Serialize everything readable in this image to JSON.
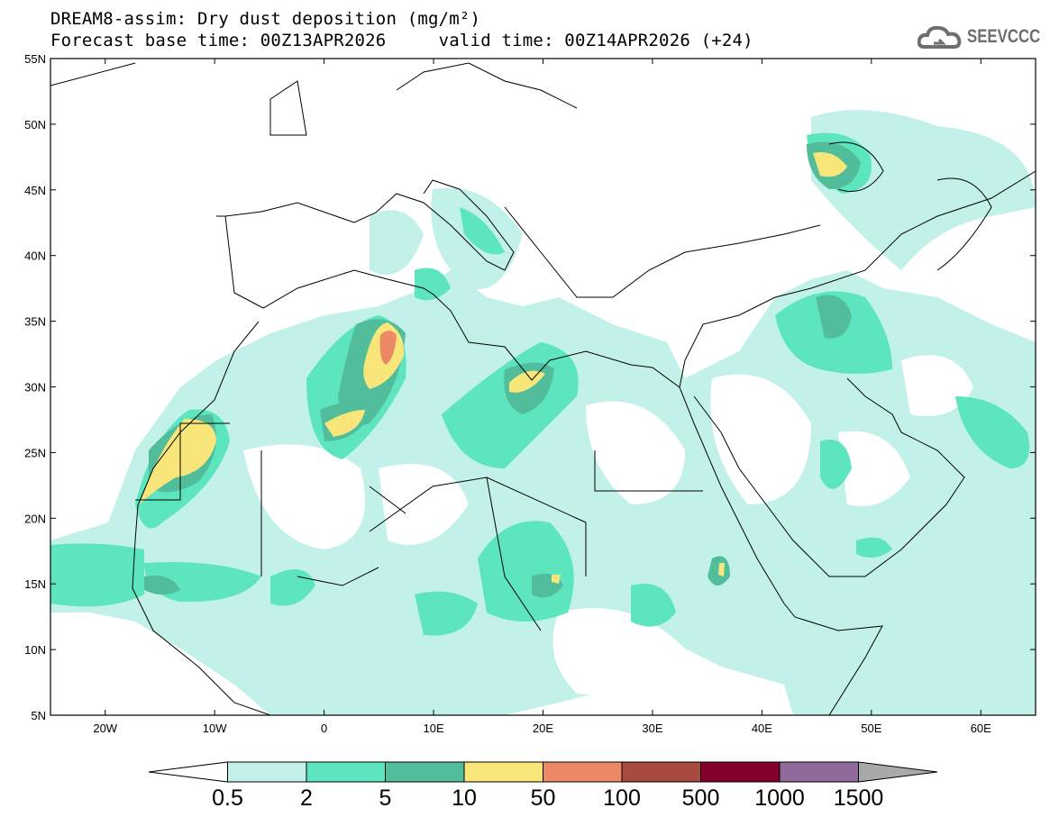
{
  "header": {
    "title": "DREAM8-assim: Dry dust deposition (mg/m²)",
    "subtitle": "Forecast base time: 00Z13APR2026     valid time: 00Z14APR2026 (+24)",
    "logo": "SEEVCCC"
  },
  "map": {
    "lat_labels": [
      "55N",
      "50N",
      "45N",
      "40N",
      "35N",
      "30N",
      "25N",
      "20N",
      "15N",
      "10N",
      "5N"
    ],
    "lon_labels": [
      "20W",
      "10W",
      "0",
      "10E",
      "20E",
      "30E",
      "40E",
      "50E",
      "60E"
    ]
  },
  "legend": {
    "labels": [
      "0.5",
      "2",
      "5",
      "10",
      "50",
      "100",
      "500",
      "1000",
      "1500"
    ],
    "colors": [
      "#ffffff",
      "#c2f1e9",
      "#5ce5bf",
      "#52bd9b",
      "#f8e67a",
      "#ec8a67",
      "#a84a40",
      "#82002b",
      "#8f6a9b",
      "#a9a9a9"
    ]
  }
}
